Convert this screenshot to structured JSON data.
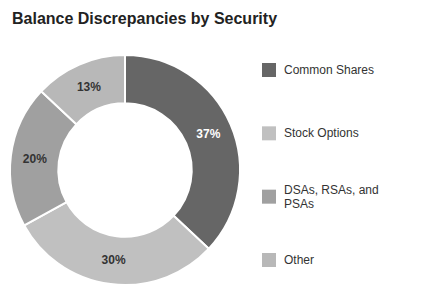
{
  "chart_data": {
    "type": "pie",
    "title": "Balance Discrepancies by Security",
    "categories": [
      "Common Shares",
      "Stock Options",
      "DSAs, RSAs, and\nPSAs",
      "Other"
    ],
    "values": [
      37,
      30,
      20,
      13
    ],
    "value_labels": [
      "37%",
      "30%",
      "20%",
      "13%"
    ],
    "colors": [
      "#666666",
      "#c0c0c0",
      "#a0a0a0",
      "#b8b8b8"
    ],
    "data_labels": true,
    "legend": "right"
  }
}
